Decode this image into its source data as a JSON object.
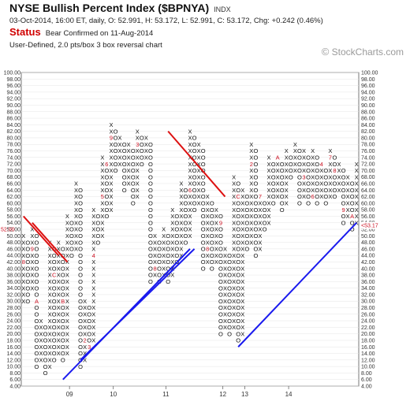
{
  "header": {
    "title": "NYSE Bullish Percent Index ($BPNYA)",
    "exchange": "INDX",
    "ohlc": "03-Oct-2014, 16:00 ET, daily, O: 52.991, H: 53.172, L: 52.991, C: 53.172, Chg: +0.242 (0.46%)",
    "status_label": "Status",
    "status_value": "Bear Confirmed on 11-Aug-2014",
    "method": "User-Defined, 2.0 pts/box 3 box reversal chart",
    "watermark": "StockCharts.com",
    "watermark_symbol": "©"
  },
  "chart_data": {
    "type": "point-and-figure",
    "box_size": 2,
    "reversal": 3,
    "ylim": [
      4,
      100
    ],
    "y_ticks": [
      4,
      6,
      8,
      10,
      12,
      14,
      16,
      18,
      20,
      22,
      24,
      26,
      28,
      30,
      32,
      34,
      36,
      38,
      40,
      42,
      44,
      46,
      48,
      50,
      52,
      54,
      56,
      58,
      60,
      62,
      64,
      66,
      68,
      70,
      72,
      74,
      76,
      78,
      80,
      82,
      84,
      86,
      88,
      90,
      92,
      94,
      96,
      98,
      100
    ],
    "y_tick_labels": [
      "4.00",
      "6.00",
      "8.00",
      "10.00",
      "12.00",
      "14.00",
      "16.00",
      "18.00",
      "20.00",
      "22.00",
      "24.00",
      "26.00",
      "28.00",
      "30.00",
      "32.00",
      "34.00",
      "36.00",
      "38.00",
      "40.00",
      "42.00",
      "44.00",
      "46.00",
      "48.00",
      "50.00",
      "52.00",
      "54.00",
      "56.00",
      "58.00",
      "60.00",
      "62.00",
      "64.00",
      "66.00",
      "68.00",
      "70.00",
      "72.00",
      "74.00",
      "76.00",
      "78.00",
      "80.00",
      "82.00",
      "84.00",
      "86.00",
      "88.00",
      "90.00",
      "92.00",
      "94.00",
      "96.00",
      "98.00",
      "100.00"
    ],
    "x_labels": [
      {
        "col": 11,
        "label": "09"
      },
      {
        "col": 21,
        "label": "10"
      },
      {
        "col": 33,
        "label": "11"
      },
      {
        "col": 46,
        "label": "12"
      },
      {
        "col": 51,
        "label": "13"
      },
      {
        "col": 61,
        "label": "14"
      }
    ],
    "last_value_left": "52.00",
    "last_value_right": "53.17",
    "columns": [
      {
        "t": "X",
        "lo": 30,
        "hi": 50
      },
      {
        "t": "O",
        "lo": 30,
        "hi": 48
      },
      {
        "t": "X",
        "lo": 34,
        "hi": 52
      },
      {
        "t": "O",
        "lo": 10,
        "hi": 50
      },
      {
        "t": "X",
        "lo": 12,
        "hi": 24
      },
      {
        "t": "O",
        "lo": 8,
        "hi": 22
      },
      {
        "t": "X",
        "lo": 10,
        "hi": 48
      },
      {
        "t": "O",
        "lo": 12,
        "hi": 46
      },
      {
        "t": "X",
        "lo": 14,
        "hi": 48
      },
      {
        "t": "O",
        "lo": 12,
        "hi": 46
      },
      {
        "t": "X",
        "lo": 14,
        "hi": 56
      },
      {
        "t": "O",
        "lo": 44,
        "hi": 54
      },
      {
        "t": "X",
        "lo": 46,
        "hi": 66
      },
      {
        "t": "O",
        "lo": 10,
        "hi": 64
      },
      {
        "t": "X",
        "lo": 12,
        "hi": 30
      },
      {
        "t": "O",
        "lo": 16,
        "hi": 28
      },
      {
        "t": "X",
        "lo": 18,
        "hi": 58
      },
      {
        "t": "O",
        "lo": 48,
        "hi": 56
      },
      {
        "t": "X",
        "lo": 50,
        "hi": 74
      },
      {
        "t": "O",
        "lo": 56,
        "hi": 72
      },
      {
        "t": "X",
        "lo": 58,
        "hi": 84
      },
      {
        "t": "O",
        "lo": 70,
        "hi": 82
      },
      {
        "t": "X",
        "lo": 72,
        "hi": 80
      },
      {
        "t": "O",
        "lo": 64,
        "hi": 78
      },
      {
        "t": "X",
        "lo": 66,
        "hi": 78
      },
      {
        "t": "O",
        "lo": 60,
        "hi": 76
      },
      {
        "t": "X",
        "lo": 62,
        "hi": 82
      },
      {
        "t": "O",
        "lo": 72,
        "hi": 80
      },
      {
        "t": "X",
        "lo": 74,
        "hi": 80
      },
      {
        "t": "O",
        "lo": 36,
        "hi": 78
      },
      {
        "t": "X",
        "lo": 38,
        "hi": 50
      },
      {
        "t": "O",
        "lo": 36,
        "hi": 48
      },
      {
        "t": "X",
        "lo": 38,
        "hi": 52
      },
      {
        "t": "O",
        "lo": 36,
        "hi": 50
      },
      {
        "t": "X",
        "lo": 38,
        "hi": 58
      },
      {
        "t": "O",
        "lo": 42,
        "hi": 56
      },
      {
        "t": "X",
        "lo": 44,
        "hi": 66
      },
      {
        "t": "O",
        "lo": 48,
        "hi": 64
      },
      {
        "t": "X",
        "lo": 50,
        "hi": 82
      },
      {
        "t": "O",
        "lo": 58,
        "hi": 80
      },
      {
        "t": "X",
        "lo": 60,
        "hi": 78
      },
      {
        "t": "O",
        "lo": 40,
        "hi": 76
      },
      {
        "t": "X",
        "lo": 42,
        "hi": 62
      },
      {
        "t": "O",
        "lo": 40,
        "hi": 60
      },
      {
        "t": "X",
        "lo": 42,
        "hi": 58
      },
      {
        "t": "O",
        "lo": 20,
        "hi": 56
      },
      {
        "t": "X",
        "lo": 22,
        "hi": 46
      },
      {
        "t": "O",
        "lo": 20,
        "hi": 44
      },
      {
        "t": "X",
        "lo": 22,
        "hi": 68
      },
      {
        "t": "O",
        "lo": 18,
        "hi": 66
      },
      {
        "t": "X",
        "lo": 20,
        "hi": 64
      },
      {
        "t": "O",
        "lo": 46,
        "hi": 62
      },
      {
        "t": "X",
        "lo": 48,
        "hi": 78
      },
      {
        "t": "O",
        "lo": 44,
        "hi": 76
      },
      {
        "t": "X",
        "lo": 46,
        "hi": 62
      },
      {
        "t": "O",
        "lo": 52,
        "hi": 60
      },
      {
        "t": "X",
        "lo": 54,
        "hi": 74
      },
      {
        "t": "O",
        "lo": 60,
        "hi": 72
      },
      {
        "t": "X",
        "lo": 62,
        "hi": 74
      },
      {
        "t": "O",
        "lo": 58,
        "hi": 72
      },
      {
        "t": "X",
        "lo": 60,
        "hi": 76
      },
      {
        "t": "O",
        "lo": 68,
        "hi": 74
      },
      {
        "t": "X",
        "lo": 70,
        "hi": 78
      },
      {
        "t": "O",
        "lo": 60,
        "hi": 76
      },
      {
        "t": "X",
        "lo": 62,
        "hi": 76
      },
      {
        "t": "O",
        "lo": 60,
        "hi": 74
      },
      {
        "t": "X",
        "lo": 62,
        "hi": 76
      },
      {
        "t": "O",
        "lo": 60,
        "hi": 74
      },
      {
        "t": "X",
        "lo": 62,
        "hi": 72
      },
      {
        "t": "O",
        "lo": 60,
        "hi": 70
      },
      {
        "t": "X",
        "lo": 62,
        "hi": 76
      },
      {
        "t": "O",
        "lo": 62,
        "hi": 74
      },
      {
        "t": "X",
        "lo": 64,
        "hi": 72
      },
      {
        "t": "O",
        "lo": 54,
        "hi": 70
      },
      {
        "t": "X",
        "lo": 56,
        "hi": 68
      },
      {
        "t": "O",
        "lo": 52,
        "hi": 66
      },
      {
        "t": "X",
        "lo": 54,
        "hi": 72
      }
    ],
    "month_markers": [
      {
        "col": 0,
        "v": 42,
        "m": "8"
      },
      {
        "col": 2,
        "v": 46,
        "m": "9"
      },
      {
        "col": 3,
        "v": 30,
        "m": "A"
      },
      {
        "col": 5,
        "v": 44,
        "m": "B"
      },
      {
        "col": 7,
        "v": 38,
        "m": "C"
      },
      {
        "col": 9,
        "v": 30,
        "m": "B"
      },
      {
        "col": 12,
        "v": 34,
        "m": "C"
      },
      {
        "col": 14,
        "v": 18,
        "m": "2"
      },
      {
        "col": 15,
        "v": 16,
        "m": "3"
      },
      {
        "col": 16,
        "v": 44,
        "m": "4"
      },
      {
        "col": 18,
        "v": 62,
        "m": "5"
      },
      {
        "col": 19,
        "v": 72,
        "m": "6"
      },
      {
        "col": 20,
        "v": 80,
        "m": "9"
      },
      {
        "col": 23,
        "v": 60,
        "m": "2"
      },
      {
        "col": 26,
        "v": 78,
        "m": "3"
      },
      {
        "col": 28,
        "v": 40,
        "m": "7"
      },
      {
        "col": 30,
        "v": 40,
        "m": "8"
      },
      {
        "col": 32,
        "v": 58,
        "m": "A"
      },
      {
        "col": 34,
        "v": 72,
        "m": "4"
      },
      {
        "col": 38,
        "v": 64,
        "m": "6"
      },
      {
        "col": 40,
        "v": 58,
        "m": "7"
      },
      {
        "col": 42,
        "v": 46,
        "m": "8"
      },
      {
        "col": 45,
        "v": 54,
        "m": "9"
      },
      {
        "col": 47,
        "v": 56,
        "m": "B"
      },
      {
        "col": 49,
        "v": 62,
        "m": "C"
      },
      {
        "col": 50,
        "v": 74,
        "m": "4"
      },
      {
        "col": 52,
        "v": 72,
        "m": "2"
      },
      {
        "col": 54,
        "v": 62,
        "m": "7"
      },
      {
        "col": 56,
        "v": 76,
        "m": "4"
      },
      {
        "col": 58,
        "v": 74,
        "m": "A"
      },
      {
        "col": 61,
        "v": 76,
        "m": "1"
      },
      {
        "col": 64,
        "v": 68,
        "m": "3"
      },
      {
        "col": 66,
        "v": 62,
        "m": "6"
      },
      {
        "col": 68,
        "v": 72,
        "m": "4"
      },
      {
        "col": 70,
        "v": 74,
        "m": "7"
      },
      {
        "col": 71,
        "v": 70,
        "m": "8"
      },
      {
        "col": 73,
        "v": 58,
        "m": "9"
      },
      {
        "col": 75,
        "v": 56,
        "m": "A"
      }
    ],
    "trendlines": [
      {
        "color": "#dd1111",
        "from": [
          0,
          56
        ],
        "to": [
          8,
          44
        ]
      },
      {
        "color": "#dd1111",
        "from": [
          2,
          54
        ],
        "to": [
          10,
          42
        ]
      },
      {
        "color": "#dd1111",
        "from": [
          33,
          82
        ],
        "to": [
          46,
          62
        ]
      },
      {
        "color": "#1a1aee",
        "from": [
          9,
          6
        ],
        "to": [
          38,
          46
        ]
      },
      {
        "color": "#1a1aee",
        "from": [
          13,
          12
        ],
        "to": [
          39,
          46
        ]
      },
      {
        "color": "#1a1aee",
        "from": [
          49,
          16
        ],
        "to": [
          76,
          54
        ]
      }
    ]
  }
}
